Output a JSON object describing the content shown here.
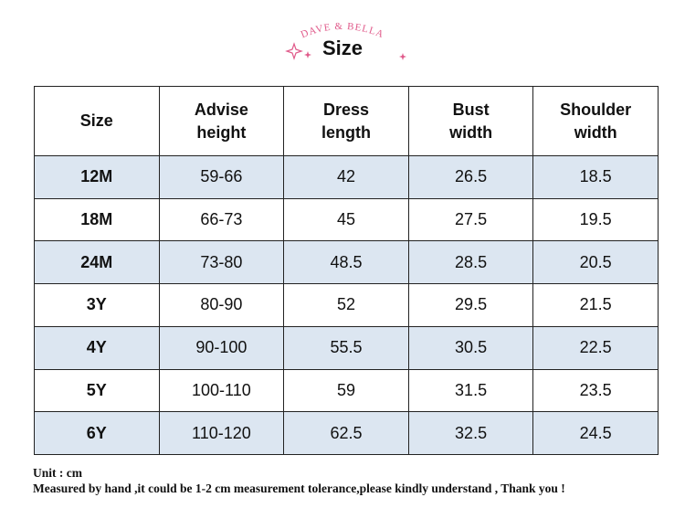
{
  "header": {
    "brand": "DAVE & BELLA",
    "title": "Size"
  },
  "table": {
    "header": [
      [
        "Size"
      ],
      [
        "Advise",
        "height"
      ],
      [
        "Dress",
        "length"
      ],
      [
        "Bust",
        "width"
      ],
      [
        "Shoulder",
        "width"
      ]
    ],
    "rows": [
      [
        "12M",
        "59-66",
        "42",
        "26.5",
        "18.5"
      ],
      [
        "18M",
        "66-73",
        "45",
        "27.5",
        "19.5"
      ],
      [
        "24M",
        "73-80",
        "48.5",
        "28.5",
        "20.5"
      ],
      [
        "3Y",
        "80-90",
        "52",
        "29.5",
        "21.5"
      ],
      [
        "4Y",
        "90-100",
        "55.5",
        "30.5",
        "22.5"
      ],
      [
        "5Y",
        "100-110",
        "59",
        "31.5",
        "23.5"
      ],
      [
        "6Y",
        "110-120",
        "62.5",
        "32.5",
        "24.5"
      ]
    ]
  },
  "notes": [
    "Unit : cm",
    "Measured by hand ,it could be 1-2 cm measurement tolerance,please kindly understand , Thank you !"
  ]
}
